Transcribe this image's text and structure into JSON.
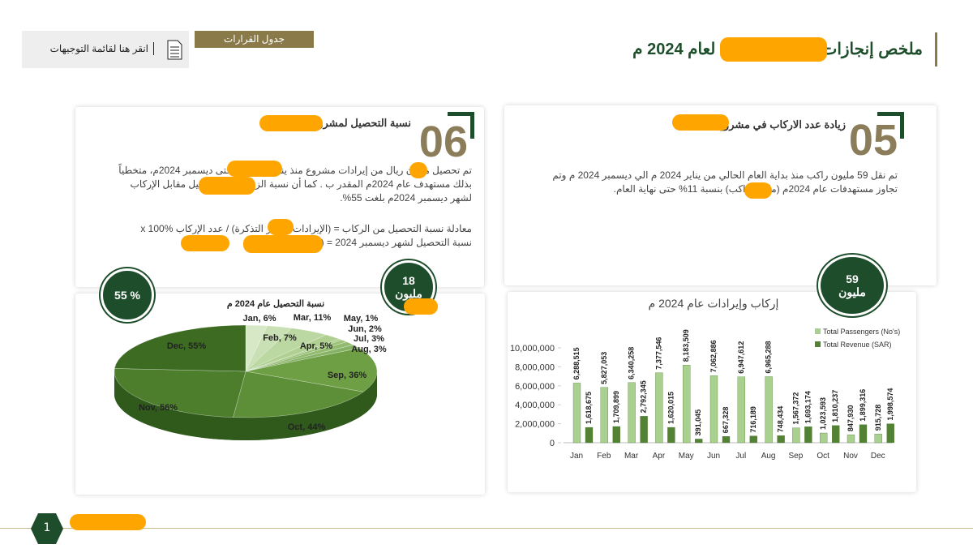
{
  "header": {
    "title_start": "ملخص إنجازات",
    "title_end": "لعام 2024 م",
    "decisions_button": "جدول القرارات",
    "guidelines_link": "انقر هنا لقائمة التوجيهات"
  },
  "cards": [
    {
      "number": "05",
      "title": "زيادة عدد الاركاب في مشروع",
      "paragraphs": [
        "تم نقل 59 مليون راكب منذ بداية العام الحالي من يناير 2024 م الي ديسمبر 2024 م وتم تجاوز مستهدفات عام 2024م (مليون راكب) بنسبة 11% حتى نهاية العام."
      ]
    },
    {
      "number": "06",
      "title": "نسبة التحصيل لمشروع",
      "paragraphs": [
        "تم تحصيل مليون ريال من إيرادات مشروع منذ يناير 2024م وحتى ديسمبر 2024م، متخطياً بذلك مستهدف عام 2024م المقدر ب . كما أن نسبة الزيادة في التحصيل مقابل الإركاب لشهر ديسمبر 2024م بلغت 55%.",
        "معادلة نسبة التحصيل من الركاب = (الإيرادات / سعر التذكرة) / عدد الإركاب x 100%",
        "نسبة التحصيل لشهر ديسمبر 2024 = ( / ) x 100% = 55%"
      ]
    }
  ],
  "badges": [
    {
      "value": "55 %"
    },
    {
      "value": "18",
      "unit": "مليون"
    },
    {
      "value": "59",
      "unit": "مليون"
    }
  ],
  "footer": {
    "page": "1"
  },
  "chart_data": [
    {
      "type": "pie",
      "title": "نسبة التحصيل عام 2024 م",
      "categories": [
        "Jan",
        "Feb",
        "Mar",
        "Apr",
        "May",
        "Jun",
        "Jul",
        "Aug",
        "Sep",
        "Oct",
        "Nov",
        "Dec"
      ],
      "values": [
        6,
        7,
        11,
        5,
        1,
        2,
        3,
        3,
        36,
        44,
        56,
        55
      ],
      "value_labels": [
        "6%",
        "7%",
        "11%",
        "5%",
        "1%",
        "2%",
        "3%",
        "3%",
        "36%",
        "44%",
        "56%",
        "55%"
      ],
      "colors": [
        "#d6e8c6",
        "#c9e0b4",
        "#bcd8a2",
        "#b0d091",
        "#a6c985",
        "#9cc27a",
        "#92bb70",
        "#86b265",
        "#6f9f45",
        "#5d8f38",
        "#4c7e2c",
        "#3d6b22"
      ]
    },
    {
      "type": "bar",
      "title": "إركاب وإيرادات عام 2024 م",
      "categories": [
        "Jan",
        "Feb",
        "Mar",
        "Apr",
        "May",
        "Jun",
        "Jul",
        "Aug",
        "Sep",
        "Oct",
        "Nov",
        "Dec"
      ],
      "series": [
        {
          "name": "Total Passengers (No's)",
          "color": "#a9d08e",
          "values": [
            6288515,
            5827053,
            6340258,
            7377546,
            8183509,
            7062886,
            6947612,
            6965288,
            1567372,
            1023593,
            847930,
            915728
          ],
          "value_labels": [
            "6,288,515",
            "5,827,053",
            "6,340,258",
            "7,377,546",
            "8,183,509",
            "7,062,886",
            "6,947,612",
            "6,965,288",
            "1,567,372",
            "1,023,593",
            "847,930",
            "915,728"
          ]
        },
        {
          "name": "Total Revenue (SAR)",
          "color": "#548235",
          "values": [
            1618675,
            1709899,
            2792345,
            1620015,
            391045,
            667328,
            716189,
            748434,
            1693174,
            1810237,
            1899316,
            1998574
          ],
          "value_labels": [
            "1,618,675",
            "1,709,899",
            "2,792,345",
            "1,620,015",
            "391,045",
            "667,328",
            "716,189",
            "748,434",
            "1,693,174",
            "1,810,237",
            "1,899,316",
            "1,998,574"
          ]
        }
      ],
      "ylim": [
        0,
        10000000
      ],
      "yticks": [
        0,
        {
          "value": 2000000,
          "label": "2,000,000"
        },
        {
          "value": 4000000,
          "label": "4,000,000"
        },
        {
          "value": 6000000,
          "label": "6,000,000"
        },
        {
          "value": 8000000,
          "label": "8,000,000"
        },
        {
          "value": 10000000,
          "label": "10,000,000"
        }
      ],
      "legend": "top-right"
    }
  ]
}
